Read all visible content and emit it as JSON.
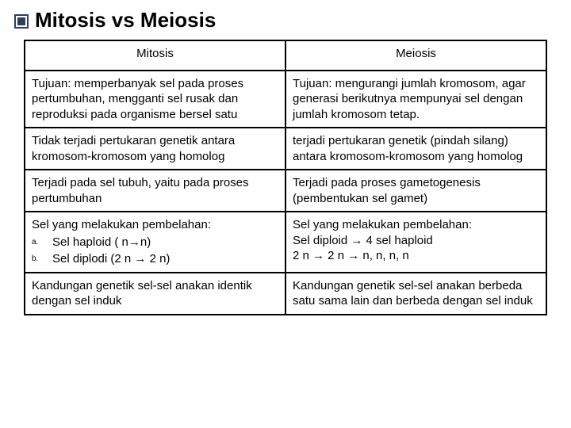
{
  "title": "Mitosis vs Meiosis",
  "columns": [
    "Mitosis",
    "Meiosis"
  ],
  "rows": [
    {
      "left": "Tujuan: memperbanyak sel pada proses pertumbuhan, mengganti sel rusak dan reproduksi pada organisme bersel satu",
      "right": "Tujuan: mengurangi jumlah kromosom, agar generasi berikutnya mempunyai sel dengan jumlah kromosom tetap."
    },
    {
      "left": "Tidak terjadi pertukaran genetik antara kromosom-kromosom yang homolog",
      "right": "terjadi pertukaran genetik (pindah silang) antara kromosom-kromosom yang homolog"
    },
    {
      "left": "Terjadi pada sel tubuh, yaitu pada proses pertumbuhan",
      "right": "Terjadi pada proses gametogenesis (pembentukan sel gamet)"
    },
    {
      "left_intro": "Sel yang melakukan pembelahan:",
      "left_items": [
        {
          "marker": "a.",
          "text": "Sel haploid ( n→n)"
        },
        {
          "marker": "b.",
          "text": "Sel diplodi (2 n → 2 n)"
        }
      ],
      "right_lines": [
        "Sel yang melakukan pembelahan:",
        "Sel diploid → 4 sel haploid",
        "2 n → 2 n → n, n, n, n"
      ]
    },
    {
      "left": "Kandungan genetik sel-sel anakan identik dengan sel induk",
      "right": "Kandungan genetik sel-sel anakan berbeda satu sama lain dan berbeda dengan sel induk"
    }
  ],
  "colors": {
    "background": "#ffffff",
    "border": "#000000",
    "text": "#000000",
    "bullet": "#333a66"
  },
  "font": {
    "family": "Arial",
    "base_size": 15,
    "title_size": 26
  }
}
